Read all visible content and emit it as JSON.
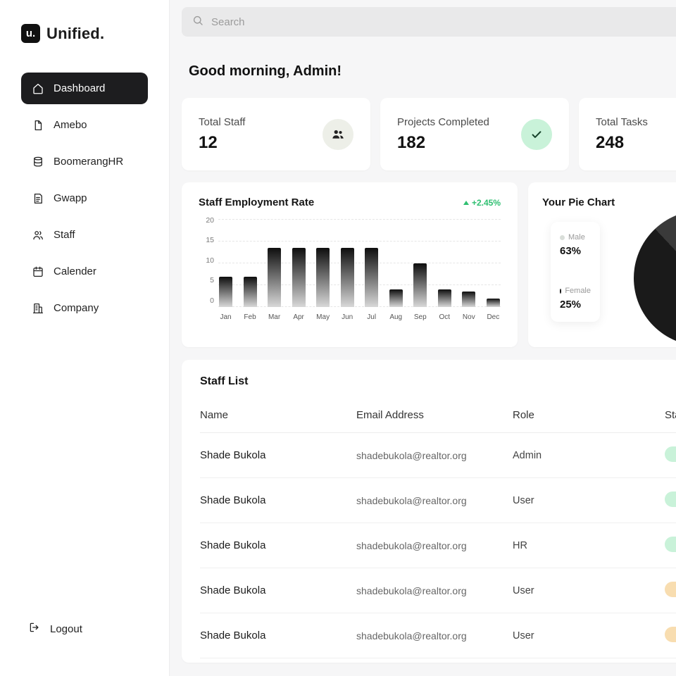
{
  "sidebar": {
    "logo_mark": "u.",
    "logo_text": "Unified.",
    "items": [
      {
        "label": "Dashboard",
        "icon": "home-icon",
        "active": true
      },
      {
        "label": "Amebo",
        "icon": "file-icon",
        "active": false
      },
      {
        "label": "BoomerangHR",
        "icon": "database-icon",
        "active": false
      },
      {
        "label": "Gwapp",
        "icon": "document-icon",
        "active": false
      },
      {
        "label": "Staff",
        "icon": "people-icon",
        "active": false
      },
      {
        "label": "Calender",
        "icon": "calendar-icon",
        "active": false
      },
      {
        "label": "Company",
        "icon": "building-icon",
        "active": false
      }
    ],
    "logout_label": "Logout"
  },
  "search": {
    "placeholder": "Search"
  },
  "header": {
    "greeting": "Good morning, Admin!"
  },
  "stats": [
    {
      "label": "Total Staff",
      "value": "12",
      "icon": "staff-group-icon",
      "icon_bg": "#edefe8",
      "icon_color": "#222222"
    },
    {
      "label": "Projects Completed",
      "value": "182",
      "icon": "check-icon",
      "icon_bg": "#c9f2d9",
      "icon_color": "#17432b"
    },
    {
      "label": "Total Tasks",
      "value": "248",
      "icon": "tasks-icon",
      "icon_bg": "#f3e6d8",
      "icon_color": "#8a5a1d"
    }
  ],
  "chart_data": {
    "type": "bar",
    "title": "Staff Employment Rate",
    "trend_label": "+2.45%",
    "trend_color": "#2fbf71",
    "categories": [
      "Jan",
      "Feb",
      "Mar",
      "Apr",
      "May",
      "Jun",
      "Jul",
      "Aug",
      "Sep",
      "Oct",
      "Nov",
      "Dec"
    ],
    "values": [
      7,
      7,
      13.5,
      13.5,
      13.5,
      13.5,
      13.5,
      4,
      10,
      4,
      3.5,
      2
    ],
    "ylim": [
      0,
      20
    ],
    "yticks": [
      20,
      15,
      10,
      5,
      0
    ],
    "grid": "dashed-horizontal",
    "legend": "none",
    "bar_gradient": [
      "#0e0e0e",
      "#d8d8d8"
    ]
  },
  "pie_chart": {
    "title": "Your Pie Chart",
    "slices": [
      {
        "label": "Male",
        "value": "63%",
        "dot_color": "#d9ded9"
      },
      {
        "label": "Female",
        "value": "25%",
        "dot_color": "#1b1b1b"
      }
    ],
    "pie_colors": [
      "#1a1a1a",
      "#3a3a3a",
      "#e7e7e7"
    ]
  },
  "staff_list": {
    "title": "Staff List",
    "columns": [
      "Name",
      "Email Address",
      "Role",
      "Status"
    ],
    "rows": [
      {
        "name": "Shade Bukola",
        "email": "shadebukola@realtor.org",
        "role": "Admin",
        "status_color": "#c9f2d9"
      },
      {
        "name": "Shade Bukola",
        "email": "shadebukola@realtor.org",
        "role": "User",
        "status_color": "#c9f2d9"
      },
      {
        "name": "Shade Bukola",
        "email": "shadebukola@realtor.org",
        "role": "HR",
        "status_color": "#c9f2d9"
      },
      {
        "name": "Shade Bukola",
        "email": "shadebukola@realtor.org",
        "role": "User",
        "status_color": "#f8ddb0"
      },
      {
        "name": "Shade Bukola",
        "email": "shadebukola@realtor.org",
        "role": "User",
        "status_color": "#f8ddb0"
      }
    ]
  }
}
